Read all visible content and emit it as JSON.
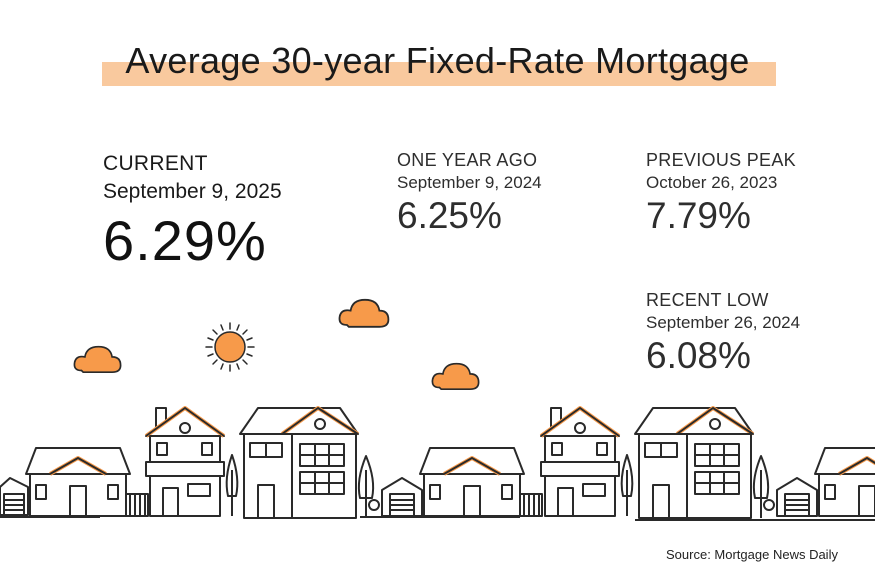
{
  "title": "Average 30-year Fixed-Rate Mortgage",
  "current": {
    "label": "CURRENT",
    "date": "September 9, 2025",
    "value": "6.29%"
  },
  "one_year_ago": {
    "label": "ONE YEAR AGO",
    "date": "September 9, 2024",
    "value": "6.25%"
  },
  "previous_peak": {
    "label": "PREVIOUS PEAK",
    "date": "October 26, 2023",
    "value": "7.79%"
  },
  "recent_low": {
    "label": "RECENT LOW",
    "date": "September 26, 2024",
    "value": "6.08%"
  },
  "source": "Source: Mortgage News Daily",
  "colors": {
    "accent": "#f79a4a",
    "highlight": "#f9c99e",
    "line": "#2a2a2a"
  },
  "icons": [
    "sun-icon",
    "cloud-icon",
    "house-icon",
    "tree-icon"
  ]
}
